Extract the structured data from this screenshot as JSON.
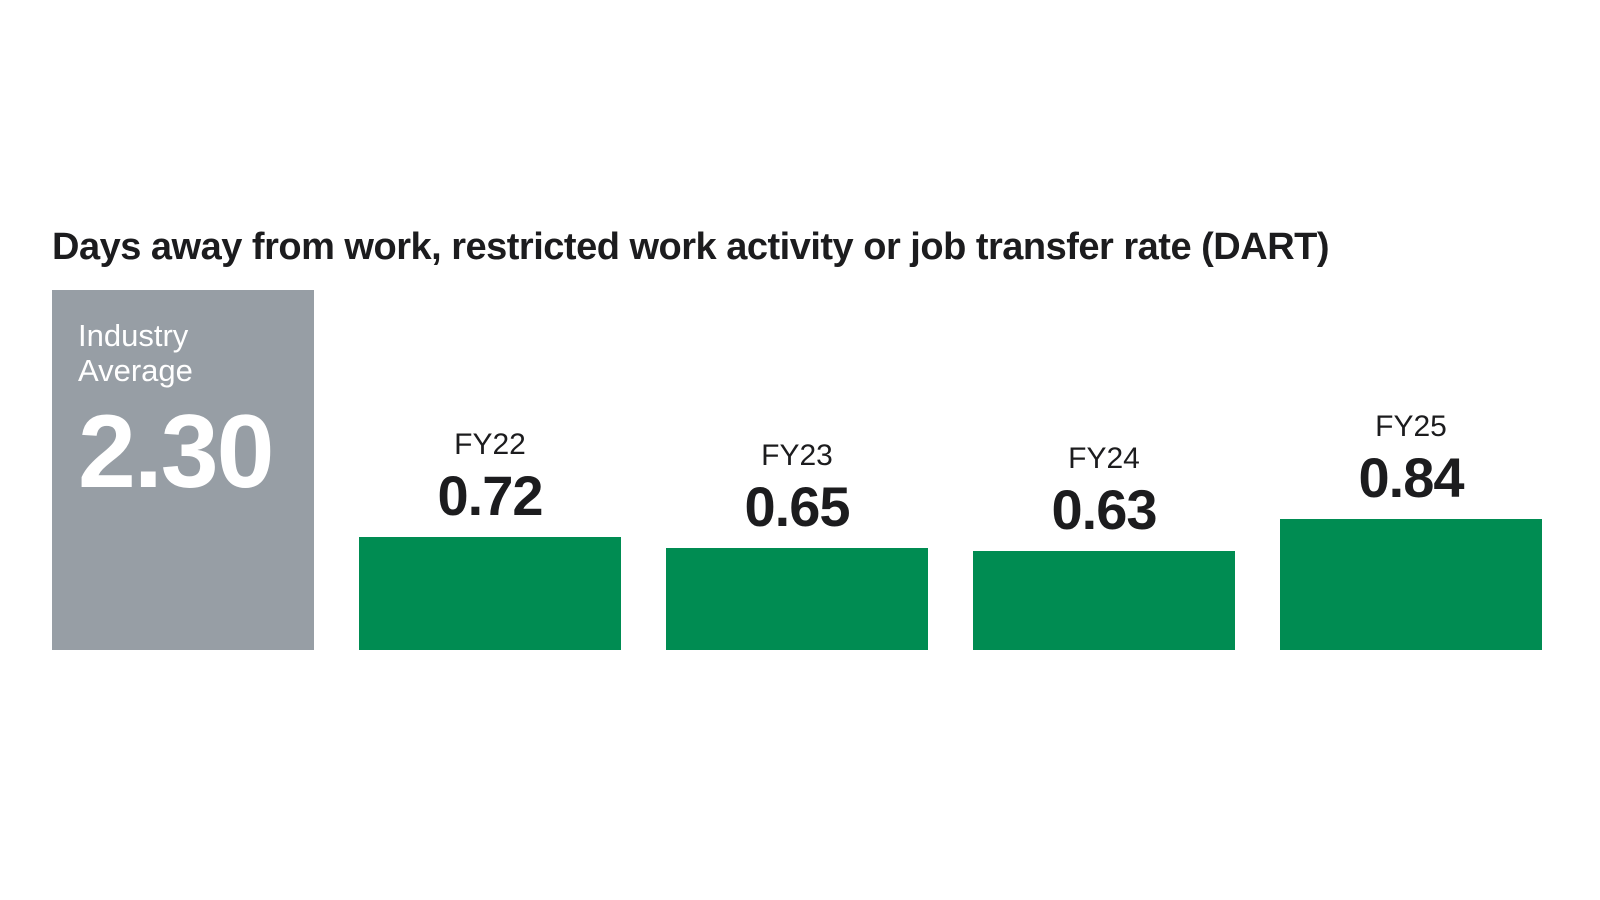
{
  "chart_data": {
    "type": "bar",
    "title": "Days away from work, restricted work activity or job transfer rate (DART)",
    "categories": [
      "FY22",
      "FY23",
      "FY24",
      "FY25"
    ],
    "values": [
      0.72,
      0.65,
      0.63,
      0.84
    ],
    "value_labels": [
      "0.72",
      "0.65",
      "0.63",
      "0.84"
    ],
    "industry_average": {
      "label": "Industry Average",
      "value": 2.3,
      "value_label": "2.30"
    },
    "ylim": [
      0,
      2.3
    ],
    "grid": false,
    "axes_visible": false,
    "legend": "none",
    "colors": {
      "bar": "#008C52",
      "industry_box": "#979EA5",
      "label_text": "#1C1C1E",
      "industry_box_text": "#FFFFFF",
      "background": "#FFFFFF"
    }
  }
}
